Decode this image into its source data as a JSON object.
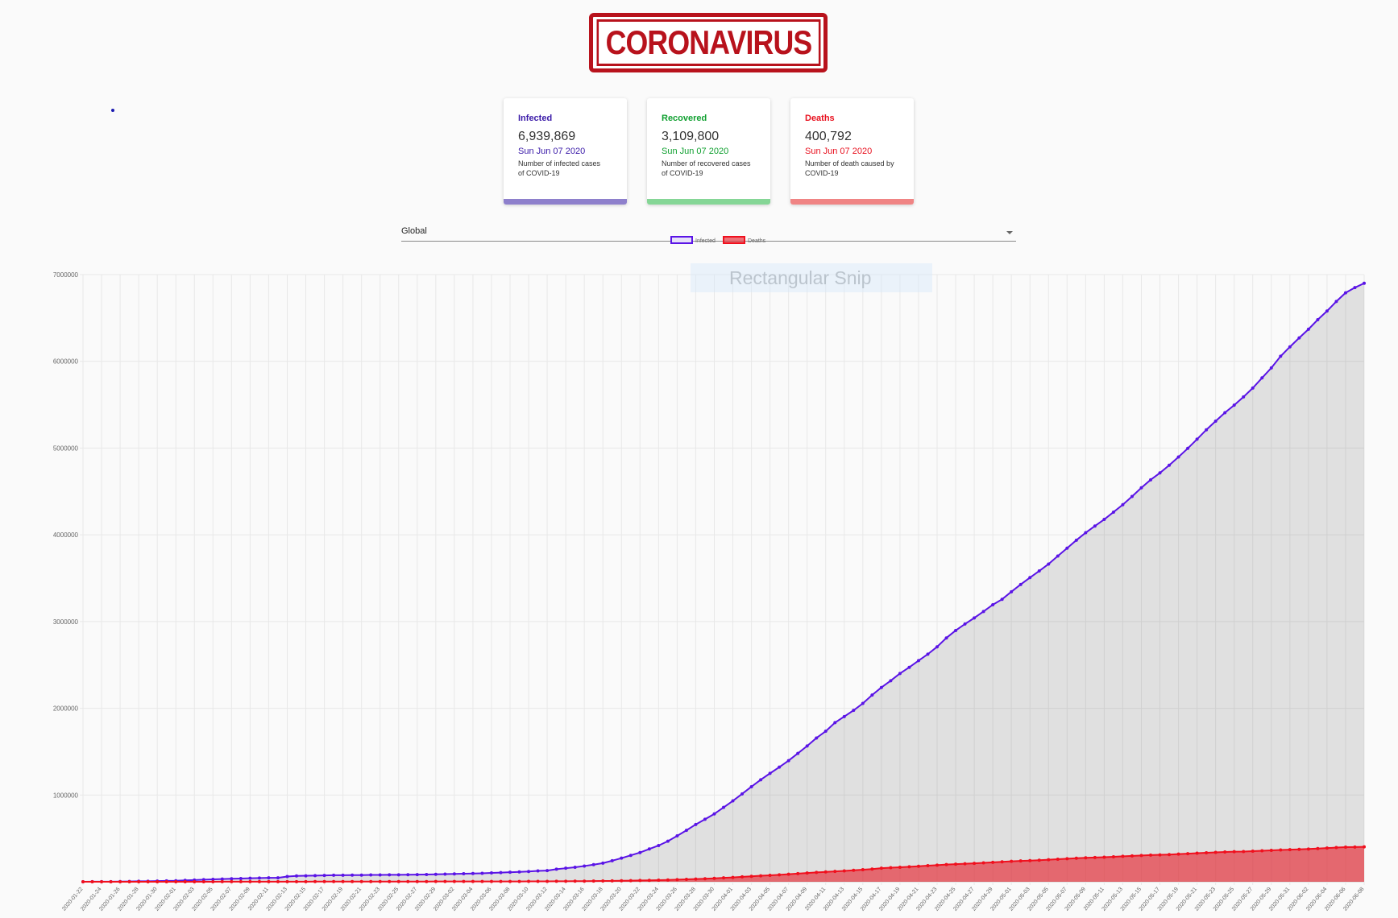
{
  "header": {
    "logo": "CORONAVIRUS"
  },
  "cards": [
    {
      "title": "Infected",
      "value": "6,939,869",
      "date": "Sun Jun 07 2020",
      "description": "Number of infected cases of COVID-19"
    },
    {
      "title": "Recovered",
      "value": "3,109,800",
      "date": "Sun Jun 07 2020",
      "description": "Number of recovered cases of COVID-19"
    },
    {
      "title": "Deaths",
      "value": "400,792",
      "date": "Sun Jun 07 2020",
      "description": "Number of death caused by COVID-19"
    }
  ],
  "country_select": {
    "selected": "Global"
  },
  "overlay": {
    "label": "Rectangular Snip"
  },
  "chart_data": {
    "type": "line",
    "legend": "top",
    "grid": true,
    "categories": [
      "2020-01-22",
      null,
      "2020-01-24",
      null,
      "2020-01-26",
      null,
      "2020-01-28",
      null,
      "2020-01-30",
      null,
      "2020-02-01",
      null,
      "2020-02-03",
      null,
      "2020-02-05",
      null,
      "2020-02-07",
      null,
      "2020-02-09",
      null,
      "2020-02-11",
      null,
      "2020-02-13",
      null,
      "2020-02-15",
      null,
      "2020-02-17",
      null,
      "2020-02-19",
      null,
      "2020-02-21",
      null,
      "2020-02-23",
      null,
      "2020-02-25",
      null,
      "2020-02-27",
      null,
      "2020-02-29",
      null,
      "2020-03-02",
      null,
      "2020-03-04",
      null,
      "2020-03-06",
      null,
      "2020-03-08",
      null,
      "2020-03-10",
      null,
      "2020-03-12",
      null,
      "2020-03-14",
      null,
      "2020-03-16",
      null,
      "2020-03-18",
      null,
      "2020-03-20",
      null,
      "2020-03-22",
      null,
      "2020-03-24",
      null,
      "2020-03-26",
      null,
      "2020-03-28",
      null,
      "2020-03-30",
      null,
      "2020-04-01",
      null,
      "2020-04-03",
      null,
      "2020-04-05",
      null,
      "2020-04-07",
      null,
      "2020-04-09",
      null,
      "2020-04-11",
      null,
      "2020-04-13",
      null,
      "2020-04-15",
      null,
      "2020-04-17",
      null,
      "2020-04-19",
      null,
      "2020-04-21",
      null,
      "2020-04-23",
      null,
      "2020-04-25",
      null,
      "2020-04-27",
      null,
      "2020-04-29",
      null,
      "2020-05-01",
      null,
      "2020-05-03",
      null,
      "2020-05-05",
      null,
      "2020-05-07",
      null,
      "2020-05-09",
      null,
      "2020-05-11",
      null,
      "2020-05-13",
      null,
      "2020-05-15",
      null,
      "2020-05-17",
      null,
      "2020-05-19",
      null,
      "2020-05-21",
      null,
      "2020-05-23",
      null,
      "2020-05-25",
      null,
      "2020-05-27",
      null,
      "2020-05-29",
      null,
      "2020-05-31",
      null,
      "2020-06-02",
      null,
      "2020-06-04",
      null,
      "2020-06-06",
      null,
      "2020-06-08"
    ],
    "series": [
      {
        "name": "Infected",
        "color": "#5a14e6",
        "fill": "rgba(0,0,0,0.1)",
        "values": [
          555,
          654,
          941,
          1434,
          2118,
          2927,
          5578,
          6166,
          8234,
          9927,
          12038,
          16787,
          19881,
          23892,
          27635,
          30794,
          34391,
          37120,
          40150,
          42762,
          44802,
          45221,
          60368,
          66885,
          69030,
          71224,
          73258,
          75136,
          75639,
          76197,
          76819,
          78572,
          78958,
          79561,
          80406,
          81388,
          82746,
          84112,
          86011,
          88369,
          90306,
          92840,
          95120,
          97886,
          101801,
          105847,
          109821,
          113590,
          118620,
          125875,
          128352,
          145205,
          156101,
          167454,
          181574,
          197102,
          214821,
          242570,
          272208,
          304507,
          336953,
          378235,
          418045,
          467653,
          529591,
          593291,
          660706,
          720117,
          782365,
          857487,
          932605,
          1013466,
          1095917,
          1176060,
          1249754,
          1321481,
          1396476,
          1479804,
          1565278,
          1657526,
          1735650,
          1834721,
          1904838,
          1976191,
          2056054,
          2152437,
          2240190,
          2317759,
          2401378,
          2472259,
          2549123,
          2624074,
          2708885,
          2811193,
          2896746,
          2971475,
          3041764,
          3116398,
          3193886,
          3256846,
          3343777,
          3427343,
          3506729,
          3583055,
          3662691,
          3755341,
          3845718,
          3938064,
          4024009,
          4101699,
          4177502,
          4261747,
          4347018,
          4442163,
          4542347,
          4634068,
          4713620,
          4801943,
          4897492,
          4996472,
          5102424,
          5210817,
          5310362,
          5407613,
          5495061,
          5589626,
          5691790,
          5808946,
          5924275,
          6059017,
          6166978,
          6270000,
          6370000,
          6480000,
          6580000,
          6690000,
          6790000,
          6850000,
          6900000
        ]
      },
      {
        "name": "Deaths",
        "color": "#f0101e",
        "fill": "rgba(230,40,50,0.65)",
        "values": [
          17,
          18,
          26,
          42,
          56,
          82,
          131,
          133,
          171,
          213,
          259,
          362,
          426,
          492,
          564,
          634,
          719,
          806,
          906,
          1013,
          1113,
          1118,
          1371,
          1523,
          1666,
          1770,
          1868,
          2007,
          2122,
          2247,
          2251,
          2458,
          2469,
          2629,
          2708,
          2770,
          2814,
          2872,
          2941,
          2996,
          3085,
          3160,
          3254,
          3348,
          3460,
          3558,
          3802,
          3988,
          4262,
          4615,
          4720,
          5404,
          5819,
          6440,
          7126,
          7905,
          8733,
          9867,
          11299,
          12973,
          14623,
          16497,
          18615,
          21181,
          24326,
          27913,
          31544,
          35331,
          39472,
          44741,
          50279,
          56771,
          62924,
          69038,
          74475,
          79999,
          86853,
          93532,
          100621,
          107808,
          114175,
          119747,
          125294,
          131831,
          138713,
          146002,
          156132,
          162020,
          167312,
          172665,
          178889,
          185366,
          191845,
          198223,
          203590,
          207754,
          211900,
          217948,
          224351,
          230263,
          235835,
          240568,
          243998,
          247853,
          254058,
          260183,
          265958,
          271241,
          275956,
          279343,
          282871,
          287954,
          293274,
          297828,
          302774,
          307197,
          310427,
          313641,
          318616,
          323879,
          329044,
          334133,
          339043,
          343296,
          346452,
          347708,
          352398,
          357601,
          362370,
          366888,
          370542,
          373733,
          377733,
          382843,
          388229,
          394179,
          399004,
          400792,
          403000
        ]
      }
    ],
    "ylim": [
      0,
      7000000
    ],
    "yticks": [
      1000000,
      2000000,
      3000000,
      4000000,
      5000000,
      6000000,
      7000000
    ]
  }
}
